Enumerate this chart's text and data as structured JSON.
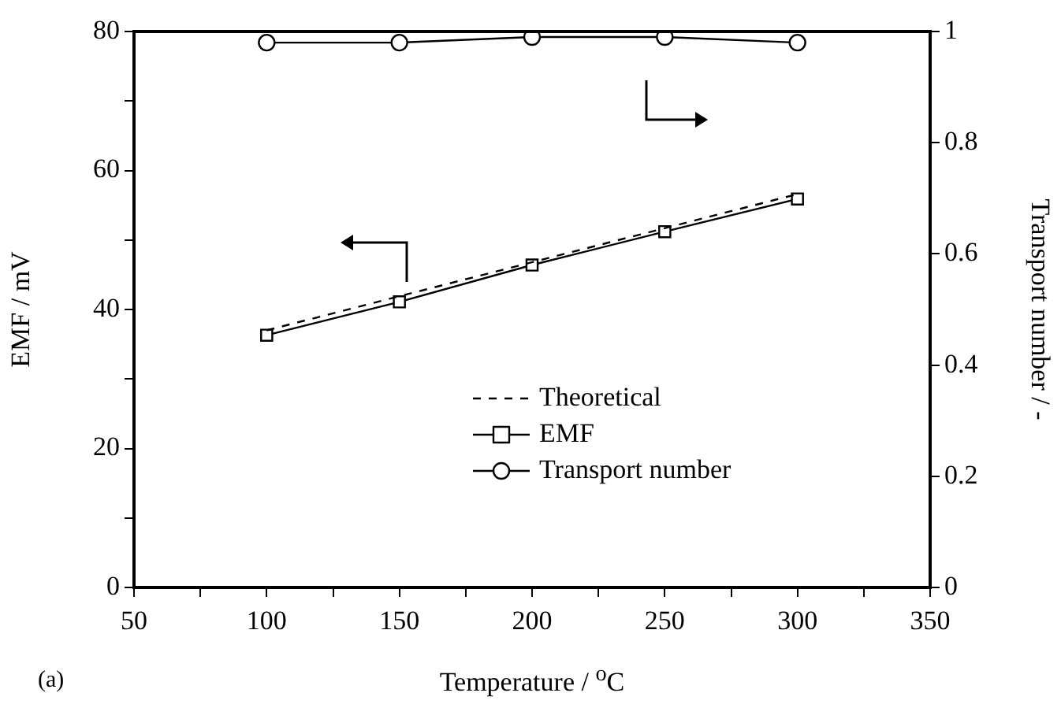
{
  "chart_data": {
    "type": "line",
    "xlabel": "Temperature / $^{o}$C",
    "ylabel": "EMF / mV",
    "y2label": "Transport number / -",
    "annotations": [
      "(a)"
    ],
    "xlim": [
      50,
      350
    ],
    "xticks": [
      50,
      {
        "value": 75,
        "label": null
      },
      100,
      {
        "value": 125,
        "label": null
      },
      150,
      {
        "value": 175,
        "label": null
      },
      200,
      {
        "value": 225,
        "label": null
      },
      250,
      {
        "value": 275,
        "label": null
      },
      300,
      {
        "value": 325,
        "label": null
      },
      350
    ],
    "ylim": [
      0,
      80
    ],
    "yticks": [
      0,
      {
        "value": 10,
        "label": null
      },
      20,
      {
        "value": 30,
        "label": null
      },
      40,
      {
        "value": 50,
        "label": null
      },
      60,
      {
        "value": 70,
        "label": null
      },
      80
    ],
    "y2lim": [
      0,
      1
    ],
    "y2ticks": [
      0,
      0.2,
      0.4,
      0.6,
      0.8,
      1
    ],
    "grid": false,
    "legend": "bottom",
    "series": [
      {
        "name": "Theoretical",
        "color": "#000000",
        "x": [
          100,
          300
        ],
        "values": [
          37.0,
          56.6
        ],
        "marker": "none",
        "line_style": "dashed"
      },
      {
        "name": "EMF",
        "color": "#000000",
        "x": [
          100,
          150,
          200,
          250,
          300
        ],
        "values": [
          36.3,
          41.1,
          46.4,
          51.2,
          55.9
        ],
        "marker": "square",
        "line_style": "solid"
      },
      {
        "name": "Transport number",
        "color": "#000000",
        "x": [
          100,
          150,
          200,
          250,
          300
        ],
        "values": [
          0.98,
          0.98,
          0.99,
          0.99,
          0.98
        ],
        "marker": "circle",
        "line_style": "solid",
        "axis": "y2"
      }
    ]
  }
}
